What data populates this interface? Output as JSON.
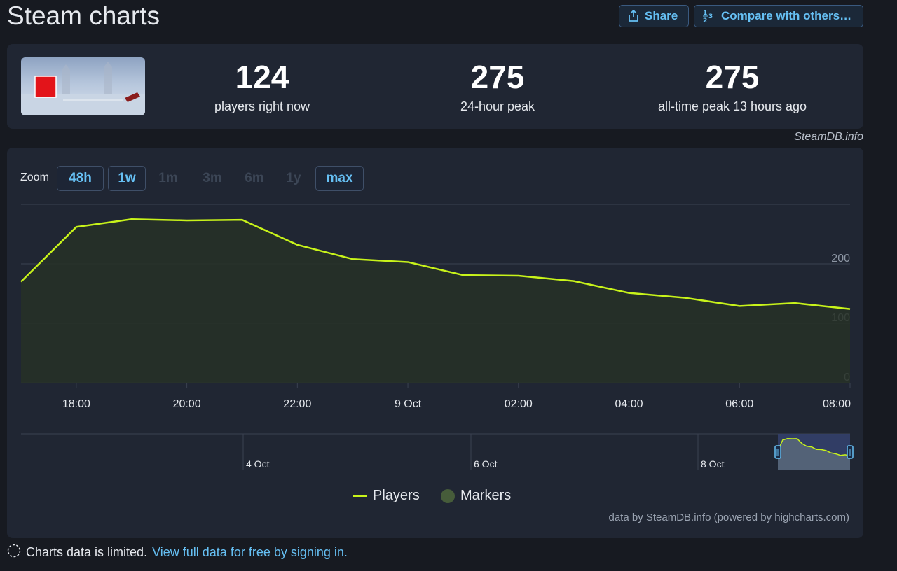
{
  "page_title": "Steam charts",
  "toolbar": {
    "share_label": "Share",
    "compare_label": "Compare with others…"
  },
  "stats": {
    "current": {
      "value": "124",
      "label": "players right now"
    },
    "peak24": {
      "value": "275",
      "label": "24-hour peak"
    },
    "alltime": {
      "value": "275",
      "label": "all-time peak 13 hours ago"
    }
  },
  "credit_top": "SteamDB.info",
  "zoom": {
    "label": "Zoom",
    "options": [
      {
        "label": "48h",
        "enabled": true
      },
      {
        "label": "1w",
        "enabled": true
      },
      {
        "label": "1m",
        "enabled": false
      },
      {
        "label": "3m",
        "enabled": false
      },
      {
        "label": "6m",
        "enabled": false
      },
      {
        "label": "1y",
        "enabled": false
      },
      {
        "label": "max",
        "enabled": true
      }
    ]
  },
  "chart_data": {
    "type": "area",
    "series": [
      {
        "name": "Players",
        "color": "#c8f31a",
        "x": [
          "2024-10-08 17:00",
          "2024-10-08 18:00",
          "2024-10-08 19:00",
          "2024-10-08 20:00",
          "2024-10-08 21:00",
          "2024-10-08 22:00",
          "2024-10-08 23:00",
          "2024-10-09 00:00",
          "2024-10-09 01:00",
          "2024-10-09 02:00",
          "2024-10-09 03:00",
          "2024-10-09 04:00",
          "2024-10-09 05:00",
          "2024-10-09 06:00",
          "2024-10-09 07:00",
          "2024-10-09 08:00"
        ],
        "values": [
          170,
          262,
          275,
          273,
          274,
          232,
          208,
          203,
          181,
          180,
          171,
          151,
          143,
          129,
          134,
          124
        ]
      }
    ],
    "legend": [
      {
        "name": "Players",
        "color": "#c8f31a"
      },
      {
        "name": "Markers",
        "color": "#465c3a"
      }
    ],
    "y_ticks": [
      "0",
      "100",
      "200"
    ],
    "ylim": [
      0,
      300
    ],
    "x_ticks": [
      "18:00",
      "20:00",
      "22:00",
      "9 Oct",
      "02:00",
      "04:00",
      "06:00",
      "08:00"
    ],
    "navigator_labels": [
      "4 Oct",
      "6 Oct",
      "8 Oct"
    ],
    "grid": true,
    "legend_position": "bottom-center"
  },
  "credit_bottom": "data by SteamDB.info (powered by highcharts.com)",
  "footer": {
    "note": "Charts data is limited.",
    "link": "View full data for free by signing in."
  }
}
